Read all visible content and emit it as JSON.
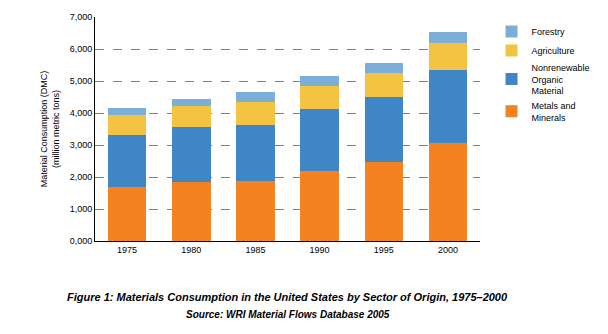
{
  "chart_data": {
    "type": "bar",
    "stacked": true,
    "title": "Figure 1: Materials Consumption in the United States by Sector of Origin, 1975–2000",
    "subtitle": "Source: WRI Material Flows Database 2005",
    "y_label": "Material Consumption (DMC)\n(million metric tons)",
    "categories": [
      "1975",
      "1980",
      "1985",
      "1990",
      "1995",
      "2000"
    ],
    "series": [
      {
        "name": "Metals and Minerals",
        "color": "#f58220",
        "values": [
          1700,
          1830,
          1880,
          2200,
          2470,
          3050
        ]
      },
      {
        "name": "Nonrenewable Organic Material",
        "color": "#3f86c7",
        "values": [
          1600,
          1720,
          1760,
          1920,
          2030,
          2300
        ]
      },
      {
        "name": "Agriculture",
        "color": "#f5c342",
        "values": [
          650,
          680,
          710,
          730,
          750,
          850
        ]
      },
      {
        "name": "Forestry",
        "color": "#7bafd8",
        "values": [
          200,
          220,
          300,
          300,
          300,
          320
        ]
      }
    ],
    "ylim": [
      0,
      7000
    ],
    "yticks": [
      {
        "value": 0,
        "label": "0,000"
      },
      {
        "value": 1000,
        "label": "1,000"
      },
      {
        "value": 2000,
        "label": "2,000"
      },
      {
        "value": 3000,
        "label": "3,000"
      },
      {
        "value": 4000,
        "label": "4,000"
      },
      {
        "value": 5000,
        "label": "5,000"
      },
      {
        "value": 6000,
        "label": "6,000"
      },
      {
        "value": 7000,
        "label": "7,000"
      }
    ],
    "grid": true,
    "legend": "right"
  }
}
